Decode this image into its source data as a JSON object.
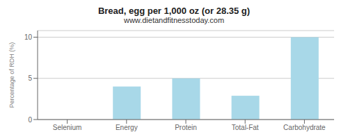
{
  "chart_data": {
    "type": "bar",
    "title": "Bread, egg per 1,000 oz (or 28.35 g)",
    "subtitle": "www.dietandfitnesstoday.com",
    "categories": [
      "Selenium",
      "Energy",
      "Protein",
      "Total-Fat",
      "Carbohydrate"
    ],
    "values": [
      0,
      4.0,
      5.0,
      2.9,
      10.0
    ],
    "color": "#a8d8e8",
    "ylabel": "Percentage of RDH (%)",
    "ylim": [
      0,
      10.8
    ],
    "yticks": [
      0,
      5,
      10
    ],
    "grid": true
  }
}
